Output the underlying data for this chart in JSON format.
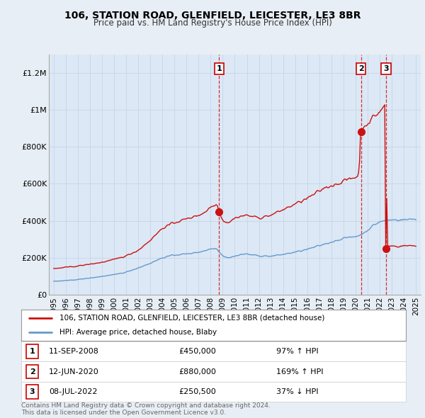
{
  "title": "106, STATION ROAD, GLENFIELD, LEICESTER, LE3 8BR",
  "subtitle": "Price paid vs. HM Land Registry's House Price Index (HPI)",
  "background_color": "#e8eef5",
  "plot_bg_color": "#dce8f5",
  "legend_line1": "106, STATION ROAD, GLENFIELD, LEICESTER, LE3 8BR (detached house)",
  "legend_line2": "HPI: Average price, detached house, Blaby",
  "footer1": "Contains HM Land Registry data © Crown copyright and database right 2024.",
  "footer2": "This data is licensed under the Open Government Licence v3.0.",
  "transactions": [
    {
      "label": "1",
      "date": "11-SEP-2008",
      "price": "£450,000",
      "hpi": "97% ↑ HPI",
      "x_year": 2008.7
    },
    {
      "label": "2",
      "date": "12-JUN-2020",
      "price": "£880,000",
      "hpi": "169% ↑ HPI",
      "x_year": 2020.45
    },
    {
      "label": "3",
      "date": "08-JUL-2022",
      "price": "£250,500",
      "hpi": "37% ↓ HPI",
      "x_year": 2022.53
    }
  ],
  "transaction_values": [
    450000,
    880000,
    250500
  ],
  "transaction_years": [
    2008.7,
    2020.45,
    2022.53
  ],
  "ylim": [
    0,
    1300000
  ],
  "xlim": [
    1994.6,
    2025.4
  ],
  "yticks": [
    0,
    200000,
    400000,
    600000,
    800000,
    1000000,
    1200000
  ],
  "ytick_labels": [
    "£0",
    "£200K",
    "£400K",
    "£600K",
    "£800K",
    "£1M",
    "£1.2M"
  ],
  "xtick_years": [
    1995,
    1996,
    1997,
    1998,
    1999,
    2000,
    2001,
    2002,
    2003,
    2004,
    2005,
    2006,
    2007,
    2008,
    2009,
    2010,
    2011,
    2012,
    2013,
    2014,
    2015,
    2016,
    2017,
    2018,
    2019,
    2020,
    2021,
    2022,
    2023,
    2024,
    2025
  ],
  "red_color": "#cc1111",
  "blue_color": "#6699cc",
  "dashed_color": "#cc1111",
  "grid_color": "#c8d8e8",
  "table_border_color": "#cc0000"
}
